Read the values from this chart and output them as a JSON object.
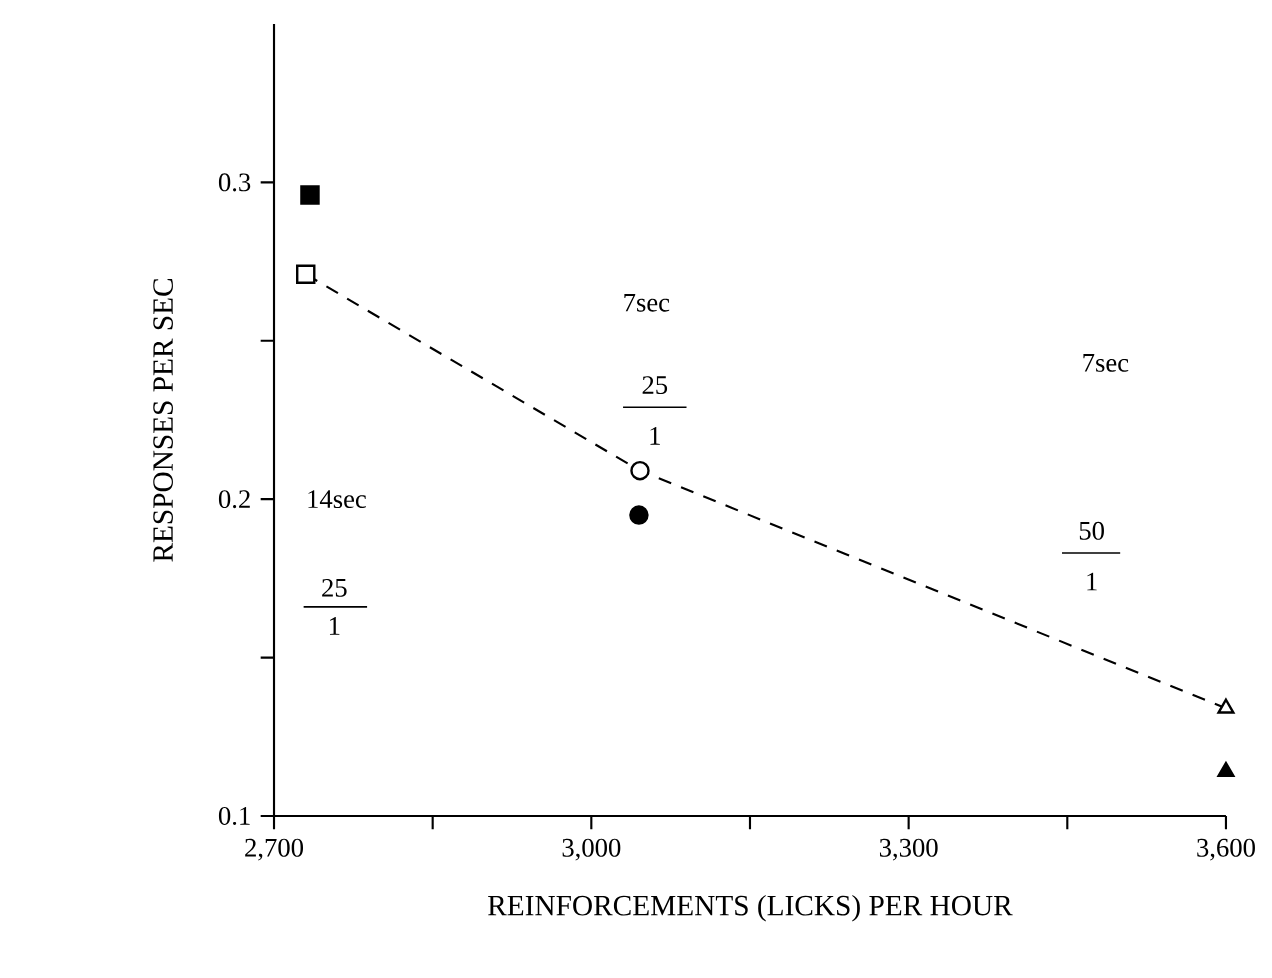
{
  "chart_data": {
    "type": "scatter",
    "xlabel": "REINFORCEMENTS (LICKS) PER HOUR",
    "ylabel": "RESPONSES PER SEC",
    "xlim": [
      2700,
      3600
    ],
    "ylim": [
      0.1,
      0.35
    ],
    "xticks": [
      {
        "value": 2700,
        "label": "2,700"
      },
      {
        "value": 2850,
        "label": null
      },
      {
        "value": 3000,
        "label": "3,000"
      },
      {
        "value": 3150,
        "label": null
      },
      {
        "value": 3300,
        "label": "3,300"
      },
      {
        "value": 3450,
        "label": null
      },
      {
        "value": 3600,
        "label": "3,600"
      }
    ],
    "yticks": [
      0.1,
      {
        "value": 0.15,
        "label": null
      },
      0.2,
      {
        "value": 0.25,
        "label": null
      },
      0.3
    ],
    "series": [
      {
        "type": "line",
        "line_style": "dashed",
        "marker": "none",
        "color": "#000000",
        "x": [
          2730,
          3046,
          3600
        ],
        "values": [
          0.271,
          0.209,
          0.134
        ]
      },
      {
        "marker": "square",
        "color": "#ffffff",
        "x": [
          2730
        ],
        "values": [
          0.271
        ]
      },
      {
        "marker": "circle",
        "color": "#ffffff",
        "x": [
          3046
        ],
        "values": [
          0.209
        ]
      },
      {
        "marker": "triangle",
        "color": "#ffffff",
        "x": [
          3600
        ],
        "values": [
          0.134
        ]
      },
      {
        "marker": "square",
        "color": "#000000",
        "x": [
          2734
        ],
        "values": [
          0.296
        ]
      },
      {
        "marker": "circle",
        "color": "#000000",
        "x": [
          3045
        ],
        "values": [
          0.195
        ]
      },
      {
        "marker": "triangle",
        "color": "#000000",
        "x": [
          3600
        ],
        "values": [
          0.114
        ]
      }
    ],
    "annotations": [
      "14sec",
      "25",
      "1",
      "7sec",
      "25",
      "1",
      "7sec",
      "50",
      "1"
    ]
  }
}
